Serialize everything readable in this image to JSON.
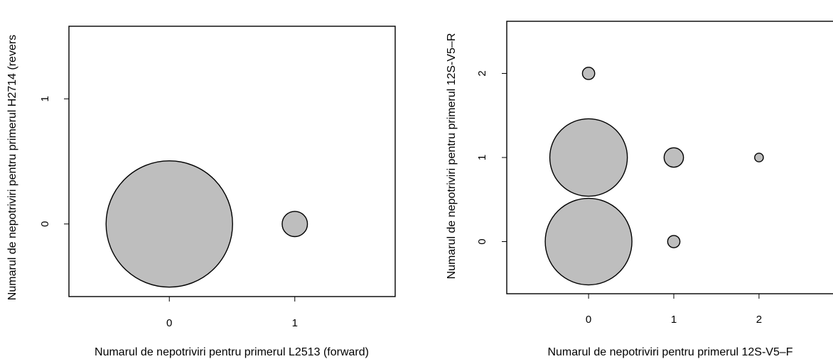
{
  "colors": {
    "bubble_fill": "#bebebe",
    "bubble_stroke": "#000000",
    "background": "#ffffff"
  },
  "chart_data": [
    {
      "type": "scatter",
      "title": "",
      "panel_label": "",
      "xlabel": "Numarul de nepotriviri pentru primerul L2513 (forward)",
      "ylabel": "Numarul de nepotriviri pentru primerul H2714 (revers",
      "xlim": [
        -0.8,
        1.8
      ],
      "ylim": [
        -0.58,
        1.58
      ],
      "x_ticks": [
        0,
        1
      ],
      "y_ticks": [
        0,
        1
      ],
      "points": [
        {
          "x": 0,
          "y": 0,
          "size": 100
        },
        {
          "x": 1,
          "y": 0,
          "size": 4
        }
      ],
      "grid": false,
      "legend": "none"
    },
    {
      "type": "scatter",
      "title": "",
      "xlabel": "Numarul de nepotriviri pentru primerul 12S-V5–F",
      "ylabel": "Numarul de nepotriviri pentru primerul 12S-V5–R",
      "xlim": [
        -0.96,
        2.96
      ],
      "ylim": [
        -0.62,
        2.62
      ],
      "x_ticks": [
        0,
        1,
        2
      ],
      "y_ticks": [
        0,
        1,
        2
      ],
      "points": [
        {
          "x": 0,
          "y": 0,
          "size": 100
        },
        {
          "x": 0,
          "y": 1,
          "size": 80
        },
        {
          "x": 0,
          "y": 2,
          "size": 2
        },
        {
          "x": 1,
          "y": 0,
          "size": 2
        },
        {
          "x": 1,
          "y": 1,
          "size": 5
        },
        {
          "x": 2,
          "y": 1,
          "size": 1
        }
      ],
      "grid": false,
      "legend": "none"
    }
  ]
}
